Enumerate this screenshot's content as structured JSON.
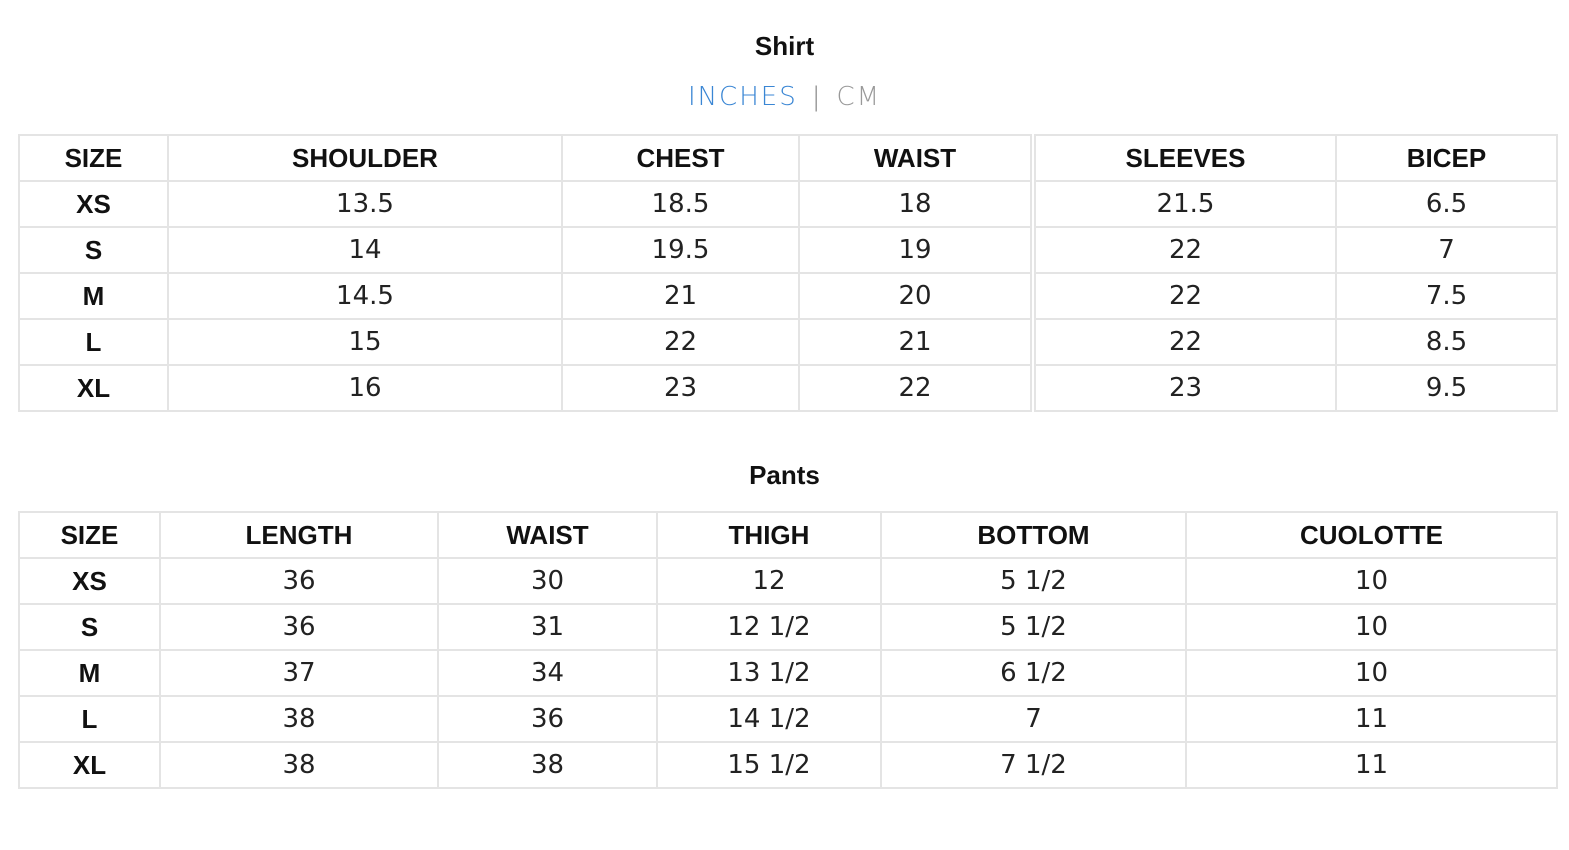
{
  "shirt": {
    "title": "Shirt",
    "units": {
      "active": "INCHES",
      "separator": "|",
      "inactive": "CM",
      "active_color": "#3a86d4"
    },
    "headers": [
      "SIZE",
      "SHOULDER",
      "CHEST",
      "WAIST",
      "SLEEVES",
      "BICEP"
    ],
    "rows": [
      [
        "XS",
        "13.5",
        "18.5",
        "18",
        "21.5",
        "6.5"
      ],
      [
        "S",
        "14",
        "19.5",
        "19",
        "22",
        "7"
      ],
      [
        "M",
        "14.5",
        "21",
        "20",
        "22",
        "7.5"
      ],
      [
        "L",
        "15",
        "22",
        "21",
        "22",
        "8.5"
      ],
      [
        "XL",
        "16",
        "23",
        "22",
        "23",
        "9.5"
      ]
    ]
  },
  "pants": {
    "title": "Pants",
    "headers": [
      "SIZE",
      "LENGTH",
      "WAIST",
      "THIGH",
      "BOTTOM",
      "CUOLOTTE"
    ],
    "rows": [
      [
        "XS",
        "36",
        "30",
        "12",
        "5 1/2",
        "10"
      ],
      [
        "S",
        "36",
        "31",
        "12 1/2",
        "5 1/2",
        "10"
      ],
      [
        "M",
        "37",
        "34",
        "13 1/2",
        "6 1/2",
        "10"
      ],
      [
        "L",
        "38",
        "36",
        "14 1/2",
        "7",
        "11"
      ],
      [
        "XL",
        "38",
        "38",
        "15 1/2",
        "7 1/2",
        "11"
      ]
    ]
  }
}
